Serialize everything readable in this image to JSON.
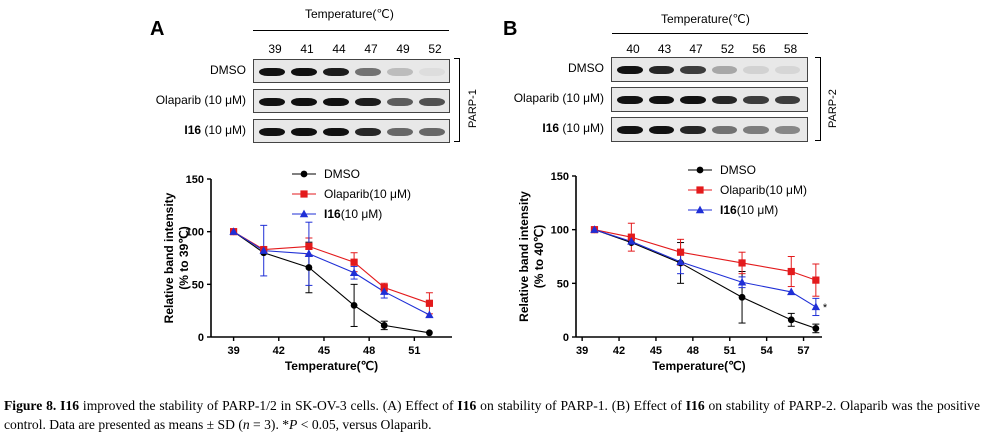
{
  "panel_a": {
    "letter": "A",
    "temperature_title": "Temperature(℃)",
    "temperatures": [
      "39",
      "41",
      "44",
      "47",
      "49",
      "52"
    ],
    "protein": "PARP-1",
    "blots": [
      {
        "name": "DMSO",
        "conc": "",
        "intensities": [
          1.0,
          1.0,
          0.95,
          0.55,
          0.2,
          0.05
        ]
      },
      {
        "name": "Olaparib",
        "conc": " (10 μM)",
        "intensities": [
          1.0,
          1.0,
          1.0,
          0.95,
          0.65,
          0.7
        ]
      },
      {
        "name": "I16",
        "conc": " (10 μM)",
        "intensities": [
          1.0,
          1.0,
          1.0,
          0.9,
          0.6,
          0.6
        ]
      }
    ]
  },
  "panel_b": {
    "letter": "B",
    "temperature_title": "Temperature(℃)",
    "temperatures": [
      "40",
      "43",
      "47",
      "52",
      "56",
      "58"
    ],
    "protein": "PARP-2",
    "blots": [
      {
        "name": "DMSO",
        "conc": "",
        "intensities": [
          1.0,
          0.9,
          0.8,
          0.3,
          0.1,
          0.08
        ]
      },
      {
        "name": "Olaparib",
        "conc": " (10 μM)",
        "intensities": [
          1.0,
          1.0,
          1.0,
          0.9,
          0.8,
          0.8
        ]
      },
      {
        "name": "I16",
        "conc": " (10 μM)",
        "intensities": [
          1.0,
          1.0,
          0.9,
          0.55,
          0.5,
          0.45
        ]
      }
    ]
  },
  "chart_data": [
    {
      "type": "line",
      "xlabel": "Temperature(℃)",
      "ylabel_line1": "Relative band intensity",
      "ylabel_line2": "(% to 39℃)",
      "xlim": [
        37.5,
        53.5
      ],
      "ylim": [
        0,
        150
      ],
      "xticks": [
        39,
        42,
        45,
        48,
        51
      ],
      "yticks": [
        0,
        50,
        100,
        150
      ],
      "x": [
        39,
        41,
        44,
        47,
        49,
        52
      ],
      "legend_position": "top-right",
      "series": [
        {
          "name": "DMSO",
          "color": "#000000",
          "marker": "circle",
          "values": [
            100,
            80,
            66,
            30,
            11,
            4
          ],
          "errors": [
            0,
            0,
            24,
            20,
            4,
            0
          ]
        },
        {
          "name": "Olaparib",
          "name_suffix": "(10 μM)",
          "color": "#e31a1c",
          "marker": "square",
          "values": [
            100,
            83,
            86,
            71,
            47,
            32
          ],
          "errors": [
            0,
            0,
            8,
            9,
            4,
            10
          ]
        },
        {
          "name": "I16",
          "name_suffix": "(10 μM)",
          "bold": true,
          "color": "#1f2fd6",
          "marker": "triangle",
          "values": [
            100,
            82,
            79,
            61,
            43,
            21
          ],
          "errors": [
            0,
            24,
            30,
            6,
            6,
            0
          ]
        }
      ]
    },
    {
      "type": "line",
      "xlabel": "Temperature(℃)",
      "ylabel_line1": "Relative band intensity",
      "ylabel_line2": "(% to 40℃)",
      "xlim": [
        38.5,
        58.5
      ],
      "ylim": [
        0,
        150
      ],
      "xticks": [
        39,
        42,
        45,
        48,
        51,
        54,
        57
      ],
      "yticks": [
        0,
        50,
        100,
        150
      ],
      "x": [
        40,
        43,
        47,
        52,
        56,
        58
      ],
      "legend_position": "top-right",
      "annotation": "*",
      "series": [
        {
          "name": "DMSO",
          "color": "#000000",
          "marker": "circle",
          "values": [
            100,
            88,
            69,
            37,
            16,
            8
          ],
          "errors": [
            0,
            0,
            19,
            24,
            6,
            4
          ]
        },
        {
          "name": "Olaparib",
          "name_suffix": "(10 μM)",
          "color": "#e31a1c",
          "marker": "square",
          "values": [
            100,
            93,
            79,
            69,
            61,
            53
          ],
          "errors": [
            0,
            13,
            12,
            10,
            14,
            15
          ]
        },
        {
          "name": "I16",
          "name_suffix": "(10 μM)",
          "bold": true,
          "color": "#1f2fd6",
          "marker": "triangle",
          "values": [
            100,
            89,
            70,
            51,
            42,
            28
          ],
          "errors": [
            0,
            0,
            11,
            5,
            0,
            8
          ]
        }
      ]
    }
  ],
  "caption": {
    "label": "Figure 8.",
    "title_bold": "I16",
    "segments": [
      {
        "t": " improved the stability of PARP-1/2 in SK-OV-3 cells. (A) Effect of ",
        "b": false
      },
      {
        "t": "I16",
        "b": true
      },
      {
        "t": " on stability of PARP-1. (B) Effect of ",
        "b": false
      },
      {
        "t": "I16",
        "b": true
      },
      {
        "t": " on stability of PARP-2. Olaparib was the positive control. Data are presented as means ± SD (",
        "b": false
      },
      {
        "t": "n",
        "i": true
      },
      {
        "t": " = 3). *",
        "b": false
      },
      {
        "t": "P",
        "i": true
      },
      {
        "t": " < 0.05, versus Olaparib.",
        "b": false
      }
    ]
  }
}
